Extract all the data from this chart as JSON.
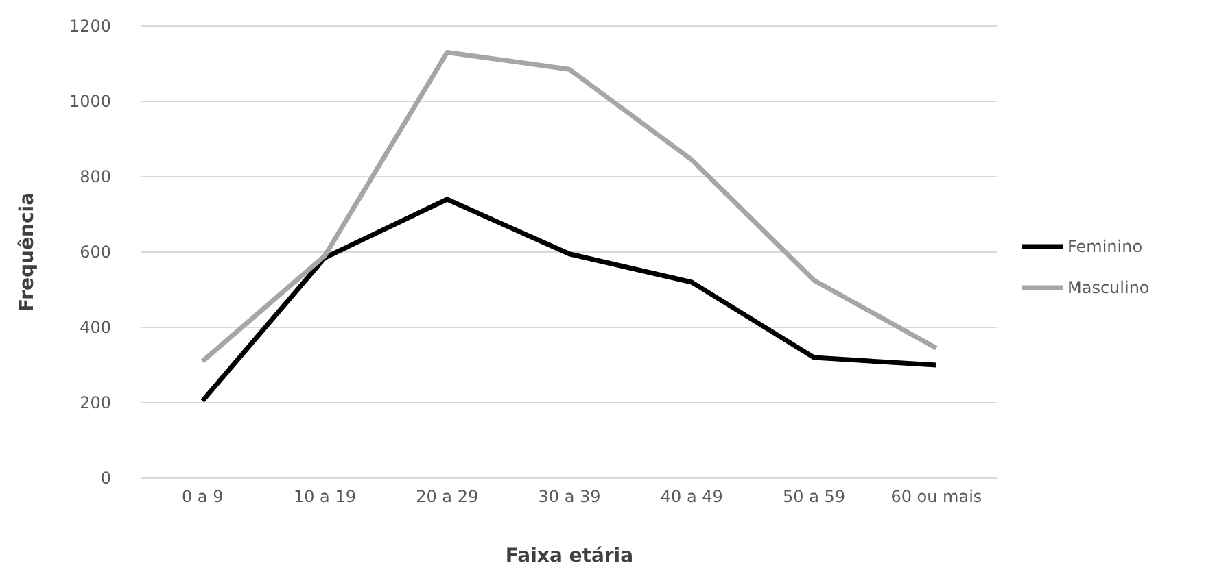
{
  "chart_data": {
    "type": "line",
    "xlabel": "Faixa etária",
    "ylabel": "Frequência",
    "categories": [
      "0 a 9",
      "10 a 19",
      "20 a 29",
      "30 a 39",
      "40 a 49",
      "50 a 59",
      "60  ou mais"
    ],
    "series": [
      {
        "name": "Feminino",
        "color": "#000000",
        "values": [
          205,
          585,
          740,
          595,
          520,
          320,
          300
        ]
      },
      {
        "name": "Masculino",
        "color": "#a6a6a6",
        "values": [
          310,
          590,
          1130,
          1085,
          845,
          525,
          345
        ]
      }
    ],
    "ylim": [
      0,
      1200
    ],
    "yticks": [
      0,
      200,
      400,
      600,
      800,
      1000,
      1200
    ],
    "grid": "y",
    "legend": "right",
    "marker": "none",
    "line_style": "solid"
  }
}
